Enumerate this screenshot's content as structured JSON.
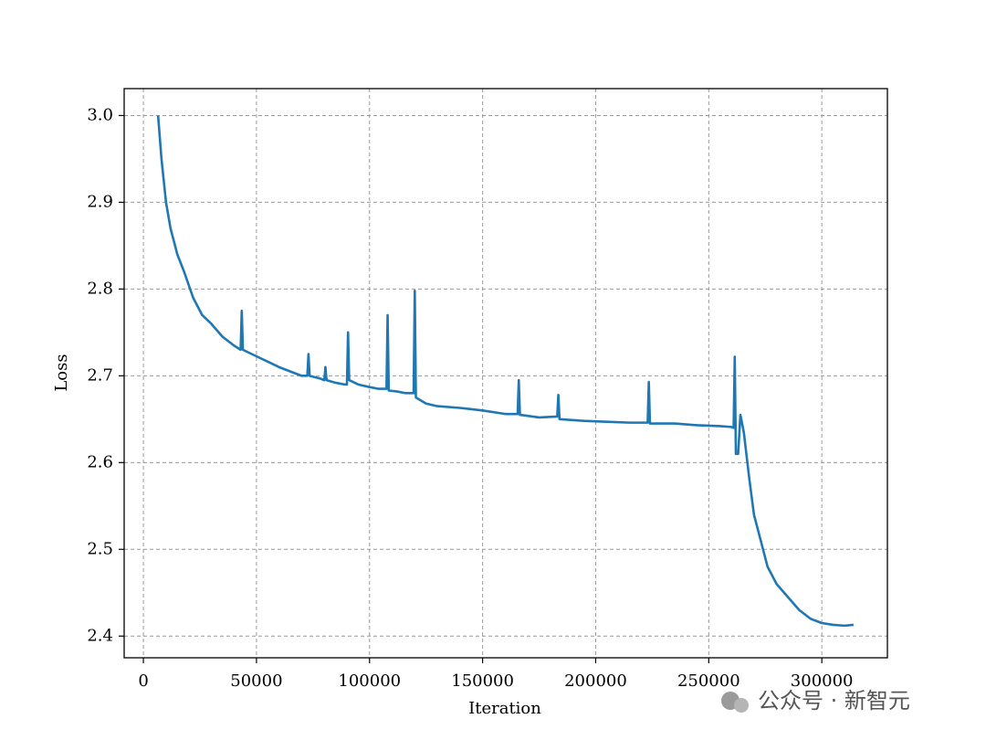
{
  "chart_data": {
    "type": "line",
    "xlabel": "Iteration",
    "ylabel": "Loss",
    "xlim": [
      -8500,
      329000
    ],
    "ylim": [
      2.375,
      3.031
    ],
    "xticks": [
      0,
      50000,
      100000,
      150000,
      200000,
      250000,
      300000
    ],
    "yticks": [
      2.4,
      2.5,
      2.6,
      2.7,
      2.8,
      2.9,
      {
        "value": 3,
        "label": "3.0"
      }
    ],
    "grid": true,
    "series": [
      {
        "color": "#1f77b4",
        "x": [
          6500,
          8000,
          10000,
          12000,
          15000,
          18000,
          22000,
          26000,
          30000,
          35000,
          40000,
          43000,
          43500,
          44000,
          48000,
          52000,
          56000,
          60000,
          65000,
          70000,
          72500,
          73000,
          73500,
          78000,
          80000,
          80500,
          81000,
          85000,
          89000,
          90000,
          90500,
          91000,
          95000,
          100000,
          104000,
          107500,
          108000,
          108500,
          112000,
          116000,
          119500,
          120000,
          120500,
          125000,
          130000,
          140000,
          150000,
          160000,
          165500,
          166000,
          166500,
          175000,
          183000,
          183500,
          184000,
          195000,
          205000,
          215000,
          223000,
          223500,
          224000,
          235000,
          245000,
          255000,
          260000,
          261000,
          261500,
          262000,
          263000,
          264000,
          265500,
          268000,
          270000,
          273000,
          276000,
          280000,
          285000,
          290000,
          295000,
          300000,
          305000,
          310000,
          314000
        ],
        "values": [
          3.0,
          2.95,
          2.9,
          2.87,
          2.84,
          2.82,
          2.79,
          2.77,
          2.76,
          2.745,
          2.735,
          2.73,
          2.775,
          2.73,
          2.725,
          2.72,
          2.715,
          2.71,
          2.705,
          2.7,
          2.7,
          2.725,
          2.7,
          2.697,
          2.695,
          2.71,
          2.695,
          2.692,
          2.69,
          2.69,
          2.75,
          2.695,
          2.69,
          2.687,
          2.685,
          2.685,
          2.77,
          2.683,
          2.682,
          2.68,
          2.68,
          2.798,
          2.675,
          2.668,
          2.665,
          2.663,
          2.66,
          2.656,
          2.656,
          2.695,
          2.655,
          2.652,
          2.653,
          2.678,
          2.65,
          2.648,
          2.647,
          2.646,
          2.646,
          2.693,
          2.645,
          2.645,
          2.643,
          2.642,
          2.641,
          2.64,
          2.722,
          2.61,
          2.61,
          2.655,
          2.635,
          2.58,
          2.54,
          2.51,
          2.48,
          2.46,
          2.445,
          2.43,
          2.42,
          2.415,
          2.413,
          2.412,
          2.413
        ]
      }
    ]
  },
  "watermark": "公众号 · 新智元"
}
